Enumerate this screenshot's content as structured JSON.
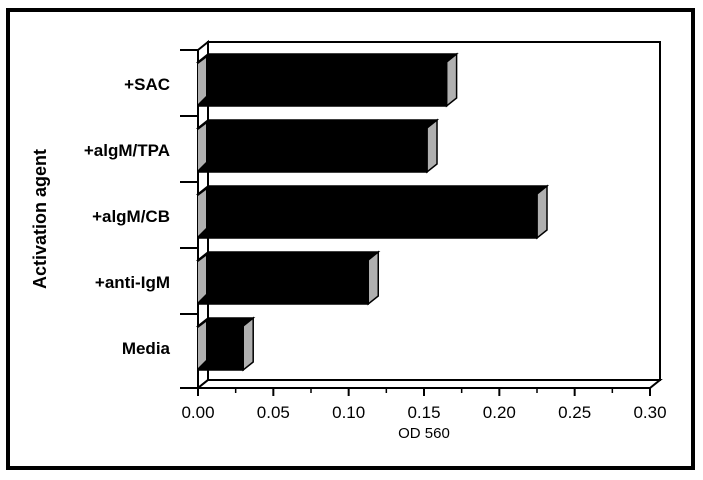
{
  "chart_data": {
    "type": "bar",
    "orientation": "horizontal",
    "style": "3d",
    "categories": [
      "+SAC",
      "+algM/TPA",
      "+algM/CB",
      "+anti-IgM",
      "Media"
    ],
    "values": [
      0.165,
      0.152,
      0.225,
      0.113,
      0.03
    ],
    "xlabel": "OD 560",
    "ylabel": "Activation agent",
    "xlim": [
      0,
      0.3
    ],
    "xticks": [
      "0.00",
      "0.05",
      "0.10",
      "0.15",
      "0.20",
      "0.25",
      "0.30"
    ],
    "grid": false,
    "legend": "none",
    "colors": {
      "bar_front": "#000000",
      "bar_side": "#b0b0b0",
      "background": "#ffffff"
    }
  }
}
